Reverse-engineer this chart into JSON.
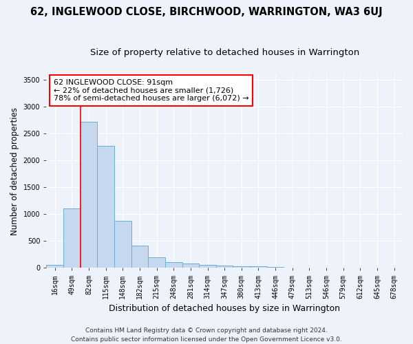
{
  "title": "62, INGLEWOOD CLOSE, BIRCHWOOD, WARRINGTON, WA3 6UJ",
  "subtitle": "Size of property relative to detached houses in Warrington",
  "xlabel": "Distribution of detached houses by size in Warrington",
  "ylabel": "Number of detached properties",
  "categories": [
    "16sqm",
    "49sqm",
    "82sqm",
    "115sqm",
    "148sqm",
    "182sqm",
    "215sqm",
    "248sqm",
    "281sqm",
    "314sqm",
    "347sqm",
    "380sqm",
    "413sqm",
    "446sqm",
    "479sqm",
    "513sqm",
    "546sqm",
    "579sqm",
    "612sqm",
    "645sqm",
    "678sqm"
  ],
  "values": [
    50,
    1100,
    2720,
    2270,
    870,
    420,
    200,
    108,
    80,
    55,
    45,
    30,
    25,
    20,
    10,
    8,
    5,
    3,
    2,
    1,
    0
  ],
  "bar_color": "#c5d8ee",
  "bar_edge_color": "#6aaed6",
  "ylim": [
    0,
    3600
  ],
  "yticks": [
    0,
    500,
    1000,
    1500,
    2000,
    2500,
    3000,
    3500
  ],
  "property_label": "62 INGLEWOOD CLOSE: 91sqm",
  "arrow_left_text": "← 22% of detached houses are smaller (1,726)",
  "arrow_right_text": "78% of semi-detached houses are larger (6,072) →",
  "red_line_bin_index": 2,
  "footnote": "Contains HM Land Registry data © Crown copyright and database right 2024.\nContains public sector information licensed under the Open Government Licence v3.0.",
  "background_color": "#eef2fa",
  "grid_color": "#ffffff",
  "title_fontsize": 10.5,
  "subtitle_fontsize": 9.5,
  "xlabel_fontsize": 9,
  "ylabel_fontsize": 8.5,
  "tick_fontsize": 7,
  "annot_fontsize": 8,
  "footnote_fontsize": 6.5
}
